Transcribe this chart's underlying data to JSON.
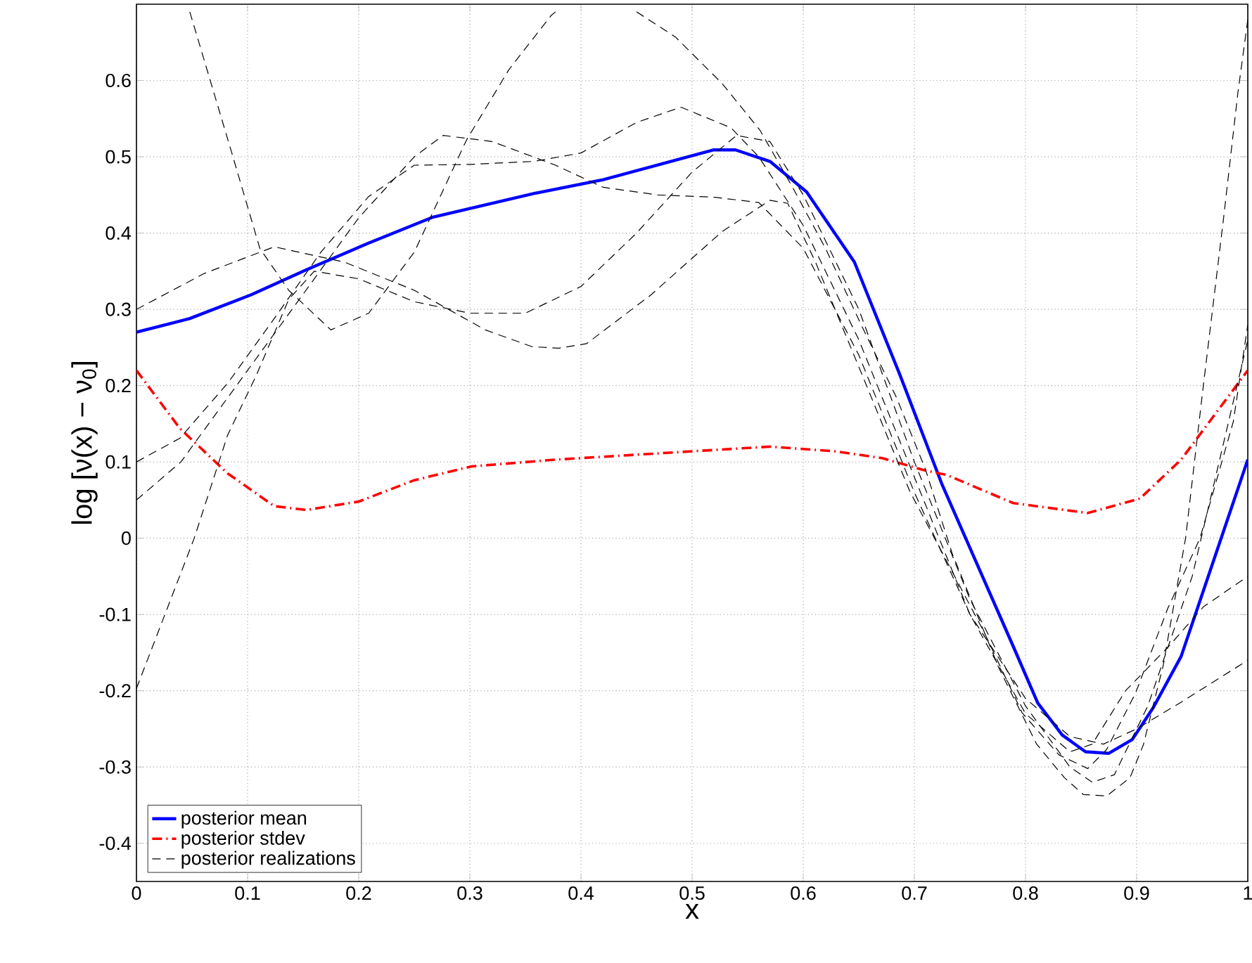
{
  "chart_data": {
    "type": "line",
    "xlabel": "x",
    "ylabel": "log [ν(x) − ν$_{0}$]",
    "xlim": [
      0,
      1
    ],
    "ylim": [
      -0.45,
      0.7
    ],
    "xticks": [
      0,
      0.1,
      0.2,
      0.3,
      0.4,
      0.5,
      0.6,
      0.7,
      0.8,
      0.9,
      1
    ],
    "yticks": [
      -0.4,
      -0.3,
      -0.2,
      -0.1,
      0,
      0.1,
      0.2,
      0.3,
      0.4,
      0.5,
      0.6
    ],
    "grid": true,
    "legend": "bottom left",
    "series": [
      {
        "name": "posterior mean",
        "color": "#0000ff",
        "line_style": "solid",
        "x": [
          0,
          0.048,
          0.103,
          0.153,
          0.209,
          0.267,
          0.358,
          0.42,
          0.519,
          0.539,
          0.57,
          0.603,
          0.646,
          0.687,
          0.725,
          0.789,
          0.811,
          0.833,
          0.854,
          0.875,
          0.896,
          0.915,
          0.94,
          1.0
        ],
        "values": [
          0.27,
          0.288,
          0.319,
          0.352,
          0.387,
          0.421,
          0.452,
          0.47,
          0.509,
          0.509,
          0.494,
          0.454,
          0.362,
          0.214,
          0.07,
          -0.142,
          -0.216,
          -0.258,
          -0.28,
          -0.282,
          -0.264,
          -0.222,
          -0.155,
          0.103
        ]
      },
      {
        "name": "posterior stdev",
        "color": "#ff0000",
        "line_style": "dashdot",
        "x": [
          0,
          0.039,
          0.082,
          0.124,
          0.153,
          0.2,
          0.25,
          0.301,
          0.377,
          0.4,
          0.501,
          0.57,
          0.628,
          0.671,
          0.709,
          0.729,
          0.789,
          0.856,
          0.903,
          0.94,
          1.0
        ],
        "values": [
          0.22,
          0.144,
          0.085,
          0.042,
          0.037,
          0.048,
          0.076,
          0.094,
          0.103,
          0.105,
          0.114,
          0.12,
          0.114,
          0.105,
          0.089,
          0.083,
          0.046,
          0.033,
          0.052,
          0.103,
          0.22
        ]
      },
      {
        "name": "posterior realizations",
        "color": "#000000",
        "line_style": "dashed",
        "x": [
          0.048,
          0.086,
          0.111,
          0.137,
          0.175,
          0.209,
          0.25,
          0.297,
          0.335,
          0.373,
          0.377,
          0.41,
          0.45,
          0.485,
          0.527,
          0.561,
          0.59,
          0.62,
          0.653,
          0.684,
          0.71,
          0.734,
          0.776,
          0.81,
          0.835,
          0.852,
          0.873,
          0.894,
          0.906,
          0.924,
          0.944,
          0.96,
          0.978,
          0.991,
          1.0
        ],
        "values": [
          0.69,
          0.504,
          0.38,
          0.325,
          0.273,
          0.295,
          0.375,
          0.522,
          0.614,
          0.685,
          0.69,
          null,
          0.69,
          0.657,
          0.596,
          0.535,
          0.461,
          0.38,
          0.277,
          0.184,
          0.09,
          -0.02,
          -0.17,
          -0.27,
          -0.314,
          -0.336,
          -0.338,
          -0.314,
          -0.271,
          -0.166,
          0.0,
          0.2,
          0.417,
          0.583,
          0.68
        ]
      },
      {
        "color": "#000000",
        "line_style": "dashed",
        "x": [
          0,
          0.061,
          0.124,
          0.187,
          0.25,
          0.314,
          0.356,
          0.38,
          0.405,
          0.463,
          0.527,
          0.57,
          0.586,
          0.611,
          0.653,
          0.696,
          0.729,
          0.763,
          0.797,
          0.83,
          0.856,
          0.873,
          0.899,
          0.928,
          0.957,
          0.987,
          1.0
        ],
        "values": [
          0.3,
          0.347,
          0.382,
          0.362,
          0.325,
          0.273,
          0.251,
          0.249,
          0.255,
          0.319,
          0.402,
          0.443,
          0.439,
          0.362,
          0.214,
          0.061,
          -0.03,
          -0.124,
          -0.229,
          -0.284,
          -0.302,
          -0.277,
          -0.203,
          -0.092,
          0.0,
          0.153,
          0.28
        ]
      },
      {
        "color": "#000000",
        "line_style": "dashed",
        "x": [
          0,
          0.039,
          0.082,
          0.124,
          0.166,
          0.209,
          0.25,
          0.3,
          0.358,
          0.4,
          0.45,
          0.49,
          0.535,
          0.56,
          0.6,
          0.65,
          0.7,
          0.75,
          0.8,
          0.84,
          0.86,
          0.89,
          0.93,
          0.96,
          1.0
        ],
        "values": [
          0.1,
          0.131,
          0.203,
          0.288,
          0.375,
          0.448,
          0.489,
          0.49,
          0.494,
          0.505,
          0.545,
          0.565,
          0.538,
          0.5,
          0.41,
          0.26,
          0.08,
          -0.1,
          -0.23,
          -0.28,
          -0.27,
          -0.2,
          -0.14,
          -0.09,
          -0.05
        ]
      },
      {
        "color": "#000000",
        "line_style": "dashed",
        "x": [
          0,
          0.04,
          0.09,
          0.14,
          0.2,
          0.25,
          0.276,
          0.32,
          0.377,
          0.42,
          0.469,
          0.52,
          0.56,
          0.6,
          0.65,
          0.7,
          0.75,
          0.8,
          0.84,
          0.87,
          0.9,
          0.94,
          1.0
        ],
        "values": [
          0.05,
          0.1,
          0.2,
          0.3,
          0.42,
          0.5,
          0.528,
          0.52,
          0.489,
          0.46,
          0.45,
          0.447,
          0.44,
          0.38,
          0.24,
          0.06,
          -0.1,
          -0.21,
          -0.26,
          -0.27,
          -0.25,
          -0.215,
          -0.16
        ]
      },
      {
        "color": "#000000",
        "line_style": "dashed",
        "x": [
          0,
          0.052,
          0.082,
          0.108,
          0.137,
          0.16,
          0.2,
          0.25,
          0.3,
          0.35,
          0.4,
          0.45,
          0.5,
          0.54,
          0.57,
          0.6,
          0.65,
          0.7,
          0.75,
          0.8,
          0.84,
          0.86,
          0.88,
          0.91,
          0.95,
          1.0
        ],
        "values": [
          -0.197,
          0.0,
          0.135,
          0.214,
          0.313,
          0.35,
          0.34,
          0.31,
          0.295,
          0.295,
          0.33,
          0.4,
          0.48,
          0.528,
          0.52,
          0.45,
          0.3,
          0.1,
          -0.08,
          -0.22,
          -0.3,
          -0.32,
          -0.31,
          -0.22,
          -0.05,
          0.26
        ]
      }
    ]
  }
}
